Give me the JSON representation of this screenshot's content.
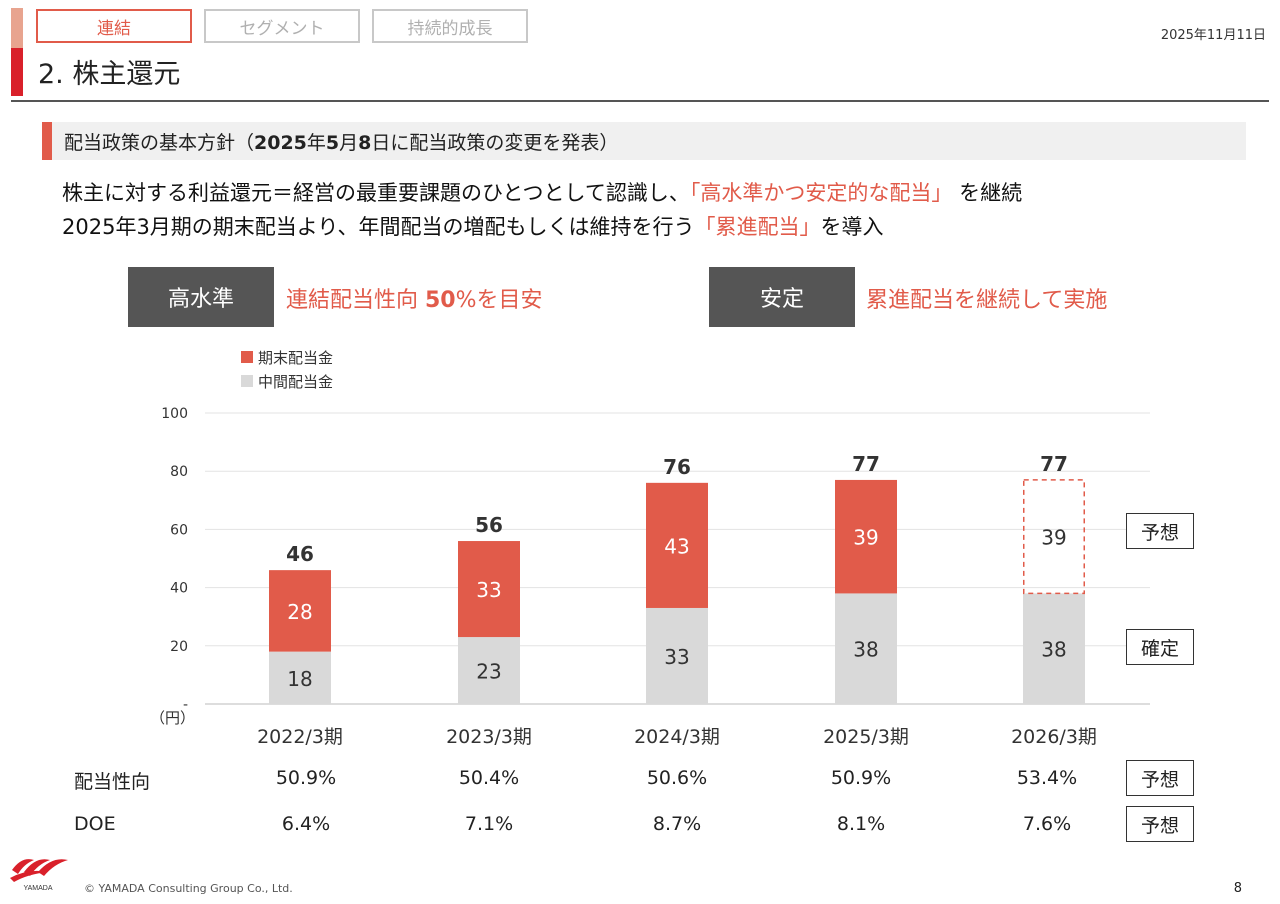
{
  "header": {
    "tabs": [
      {
        "label": "連結",
        "active": true
      },
      {
        "label": "セグメント",
        "active": false
      },
      {
        "label": "持続的成長",
        "active": false
      }
    ],
    "date": "2025年11月11日",
    "title": "2. 株主還元"
  },
  "section": {
    "prefix": "配当政策の基本方針（",
    "bold_year": "2025",
    "mid1": "年",
    "bold_month": "5",
    "mid2": "月",
    "bold_day": "8",
    "suffix": "日に配当政策の変更を発表）"
  },
  "policy": {
    "line1_a": "株主に対する利益還元＝経営の最重要課題のひとつとして認識し、",
    "line1_hl": "「高水準かつ安定的な配当」",
    "line1_b": " を継続",
    "line2_a": "2025年3月期の期末配当より、年間配当の増配もしくは維持を行う",
    "line2_hl": "「累進配当」",
    "line2_b": "を導入"
  },
  "boxes": [
    {
      "label": "高水準",
      "desc_a": "連結配当性向 ",
      "desc_bold": "50",
      "desc_b": "%を目安"
    },
    {
      "label": "安定",
      "desc_a": "累進配当を継続して実施",
      "desc_bold": "",
      "desc_b": ""
    }
  ],
  "chart_data": {
    "type": "bar",
    "stacked": true,
    "unit_label": "（円）",
    "categories": [
      "2022/3期",
      "2023/3期",
      "2024/3期",
      "2025/3期",
      "2026/3期"
    ],
    "series": [
      {
        "name": "中間配当金",
        "values": [
          18,
          23,
          33,
          38,
          38
        ],
        "color": "#d9d9d9"
      },
      {
        "name": "期末配当金",
        "values": [
          28,
          33,
          43,
          39,
          39
        ],
        "color": "#e15b4a"
      }
    ],
    "totals": [
      46,
      56,
      76,
      77,
      77
    ],
    "forecast_index": 4,
    "y_ticks": [
      "-",
      "20",
      "40",
      "60",
      "80",
      "100"
    ],
    "ylim": [
      0,
      100
    ],
    "legend": [
      "期末配当金",
      "中間配当金"
    ]
  },
  "tags": {
    "forecast": "予想",
    "confirmed": "確定"
  },
  "metrics": [
    {
      "label": "配当性向",
      "values": [
        "50.9%",
        "50.4%",
        "50.6%",
        "50.9%",
        "53.4%"
      ],
      "tag": "予想"
    },
    {
      "label": "DOE",
      "values": [
        "6.4%",
        "7.1%",
        "8.7%",
        "8.1%",
        "7.6%"
      ],
      "tag": "予想"
    }
  ],
  "footer": {
    "copyright": "© YAMADA Consulting Group Co., Ltd.",
    "page": "8",
    "logo_text": "YAMADA"
  },
  "colors": {
    "accent": "#e15b4a",
    "dark": "#555555",
    "gray_bar": "#d9d9d9"
  }
}
